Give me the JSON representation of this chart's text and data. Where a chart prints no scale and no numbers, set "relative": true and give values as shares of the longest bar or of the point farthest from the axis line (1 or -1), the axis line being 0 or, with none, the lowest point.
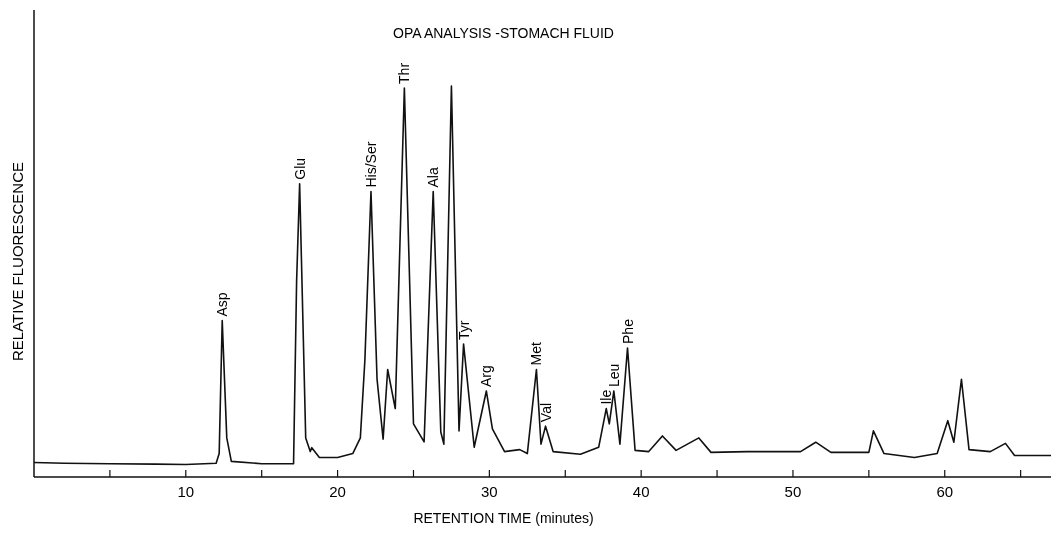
{
  "chart_data": {
    "type": "line",
    "title": "OPA ANALYSIS -STOMACH FLUID",
    "xlabel": "RETENTION TIME (minutes)",
    "ylabel": "RELATIVE FLUORESCENCE",
    "relative": true,
    "xlim": [
      0,
      67
    ],
    "xticks": [
      {
        "value": 5,
        "label": null
      },
      10,
      {
        "value": 15,
        "label": null
      },
      20,
      {
        "value": 25,
        "label": null
      },
      30,
      {
        "value": 35,
        "label": null
      },
      40,
      {
        "value": 45,
        "label": null
      },
      50,
      {
        "value": 55,
        "label": null
      },
      60,
      {
        "value": 65,
        "label": null
      }
    ],
    "grid": false,
    "marker": "none",
    "line_style": "solid",
    "series": [
      {
        "color": "#111111",
        "x": [
          0,
          2,
          5,
          8,
          10,
          12,
          12.2,
          12.4,
          12.7,
          13,
          15,
          17,
          17.1,
          17.3,
          17.5,
          17.9,
          18.2,
          18.3,
          18.8,
          20,
          21,
          21.5,
          21.8,
          22.2,
          22.6,
          23,
          23.3,
          23.8,
          24.4,
          25,
          25.7,
          26.3,
          26.8,
          27,
          27.5,
          28,
          28.3,
          29,
          29.8,
          30.2,
          31,
          32,
          32.5,
          33.1,
          33.4,
          33.7,
          34.2,
          36,
          37.2,
          37.7,
          37.9,
          38.2,
          38.6,
          39.1,
          39.6,
          40.5,
          41.4,
          42.3,
          43.8,
          44.6,
          47,
          50.5,
          51.5,
          52.5,
          55,
          55.3,
          56,
          58,
          59.5,
          60.2,
          60.6,
          61.1,
          61.6,
          63,
          64,
          64.6,
          66.5,
          67
        ],
        "values": [
          0.037,
          0.035,
          0.034,
          0.033,
          0.032,
          0.035,
          0.06,
          0.4,
          0.1,
          0.04,
          0.034,
          0.034,
          0.034,
          0.5,
          0.75,
          0.1,
          0.065,
          0.075,
          0.05,
          0.05,
          0.06,
          0.1,
          0.3,
          0.73,
          0.25,
          0.097,
          0.275,
          0.175,
          0.995,
          0.136,
          0.09,
          0.73,
          0.115,
          0.084,
          1,
          0.118,
          0.34,
          0.076,
          0.22,
          0.123,
          0.065,
          0.07,
          0.06,
          0.275,
          0.084,
          0.13,
          0.065,
          0.058,
          0.076,
          0.175,
          0.136,
          0.22,
          0.084,
          0.33,
          0.068,
          0.065,
          0.105,
          0.068,
          0.1,
          0.063,
          0.065,
          0.065,
          0.089,
          0.063,
          0.063,
          0.118,
          0.06,
          0.05,
          0.06,
          0.144,
          0.089,
          0.25,
          0.07,
          0.065,
          0.086,
          0.055,
          0.055,
          0.055
        ]
      }
    ],
    "annotations": [
      {
        "text": "Asp",
        "x": 12.4,
        "y": 0.4
      },
      {
        "text": "Glu",
        "x": 17.5,
        "y": 0.75
      },
      {
        "text": "His/Ser",
        "x": 22.2,
        "y": 0.73
      },
      {
        "text": "Thr",
        "x": 24.4,
        "y": 0.995
      },
      {
        "text": "Ala",
        "x": 26.3,
        "y": 0.73
      },
      {
        "text": "Tyr",
        "x": 28.3,
        "y": 0.34
      },
      {
        "text": "Arg",
        "x": 29.8,
        "y": 0.22
      },
      {
        "text": "Met",
        "x": 33.1,
        "y": 0.275
      },
      {
        "text": "Val",
        "x": 33.7,
        "y": 0.13
      },
      {
        "text": "Ile",
        "x": 37.7,
        "y": 0.175
      },
      {
        "text": "Leu",
        "x": 38.2,
        "y": 0.22
      },
      {
        "text": "Phe",
        "x": 39.1,
        "y": 0.33
      }
    ]
  }
}
